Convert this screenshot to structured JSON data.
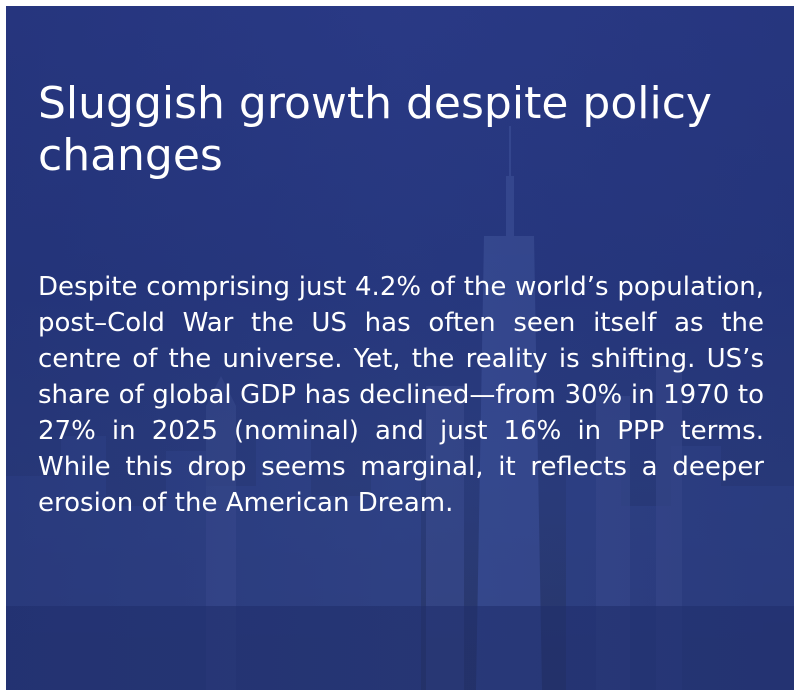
{
  "slide": {
    "title": "Sluggish growth despite policy changes",
    "body": "Despite comprising just 4.2% of the world’s population, post–Cold War the US has often seen itself as the centre of the universe. Yet, the reality is shifting. US’s share of global GDP has declined—from 30% in 1970 to 27% in 2025 (nominal) and just 16% in PPP terms. While this drop seems marginal, it reflects a deeper erosion of the American Dream."
  },
  "colors": {
    "background": "#27387f",
    "text": "#ffffff",
    "frame": "#ffffff"
  },
  "background_image": {
    "icon": "city-skyline-image"
  }
}
